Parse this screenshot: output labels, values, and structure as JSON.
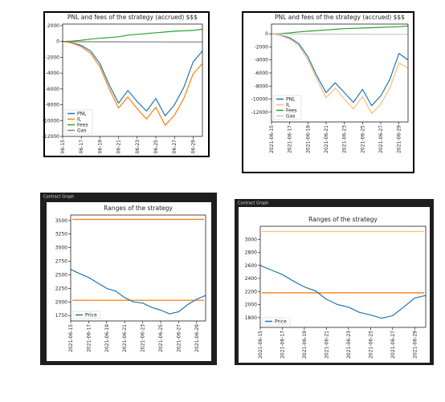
{
  "chart_data": [
    {
      "type": "line",
      "title": "PNL and fees of the strategy (accrued) $$$",
      "x": [
        "06-15",
        "06-16",
        "06-17",
        "06-18",
        "06-19",
        "06-20",
        "06-21",
        "06-22",
        "06-23",
        "06-24",
        "06-25",
        "06-26",
        "06-27",
        "06-28",
        "06-29",
        "06-30"
      ],
      "xticks": [
        "06-15",
        "06-17",
        "06-19",
        "06-21",
        "06-23",
        "06-25",
        "06-27",
        "06-29"
      ],
      "ylim": [
        -12000,
        2200
      ],
      "yticks": [
        2000,
        0,
        -2000,
        -4000,
        -6000,
        -8000,
        -10000,
        -12000
      ],
      "legend": "lower left",
      "series": [
        {
          "name": "PNL",
          "color": "#1f77b4",
          "values": [
            0,
            -150,
            -500,
            -1200,
            -2800,
            -5500,
            -7800,
            -6200,
            -7600,
            -8800,
            -7200,
            -9400,
            -8000,
            -5800,
            -2600,
            -1200
          ]
        },
        {
          "name": "IL",
          "color": "#ff7f0e",
          "values": [
            0,
            -200,
            -650,
            -1500,
            -3200,
            -6000,
            -8400,
            -7000,
            -8500,
            -9800,
            -8300,
            -10600,
            -9300,
            -7200,
            -4100,
            -2800
          ]
        },
        {
          "name": "Fees",
          "color": "#2ca02c",
          "values": [
            0,
            50,
            150,
            300,
            400,
            500,
            600,
            800,
            900,
            1000,
            1100,
            1200,
            1300,
            1350,
            1400,
            1550
          ]
        },
        {
          "name": "Gas",
          "color": "#7f7f7f",
          "values": [
            0,
            -20,
            -30,
            -30,
            -40,
            -40,
            -40,
            -50,
            -50,
            -50,
            -50,
            -60,
            -60,
            -60,
            -60,
            -60
          ]
        }
      ]
    },
    {
      "type": "line",
      "title": "PNL and fees of the strategy (accrued) $$$",
      "x": [
        "2021-06-15",
        "2021-06-16",
        "2021-06-17",
        "2021-06-18",
        "2021-06-19",
        "2021-06-20",
        "2021-06-21",
        "2021-06-22",
        "2021-06-23",
        "2021-06-24",
        "2021-06-25",
        "2021-06-26",
        "2021-06-27",
        "2021-06-28",
        "2021-06-29",
        "2021-06-30"
      ],
      "xticks": [
        "2021-06-15",
        "2021-06-17",
        "2021-06-19",
        "2021-06-21",
        "2021-06-23",
        "2021-06-25",
        "2021-06-27",
        "2021-06-29"
      ],
      "ylim": [
        -13500,
        1500
      ],
      "yticks": [
        0,
        -2000,
        -4000,
        -6000,
        -8000,
        -10000,
        -12000
      ],
      "legend": "lower left",
      "series": [
        {
          "name": "PNL",
          "color": "#1f77b4",
          "values": [
            0,
            -200,
            -600,
            -1500,
            -3500,
            -6500,
            -9000,
            -7500,
            -9000,
            -10500,
            -8500,
            -11000,
            -9500,
            -7000,
            -3000,
            -4000
          ]
        },
        {
          "name": "IL",
          "color": "#ffbb78",
          "values": [
            0,
            -250,
            -800,
            -1800,
            -4000,
            -7000,
            -9800,
            -8300,
            -10000,
            -11500,
            -9600,
            -12200,
            -10800,
            -8300,
            -4500,
            -5200
          ]
        },
        {
          "name": "Fees",
          "color": "#2ca02c",
          "values": [
            0,
            50,
            150,
            300,
            400,
            500,
            600,
            700,
            800,
            850,
            900,
            950,
            1000,
            1050,
            1100,
            1200
          ]
        },
        {
          "name": "Gas",
          "color": "#c7c7c7",
          "values": [
            0,
            -20,
            -30,
            -30,
            -40,
            -40,
            -40,
            -50,
            -50,
            -50,
            -50,
            -60,
            -60,
            -60,
            -60,
            -60
          ]
        }
      ]
    },
    {
      "type": "line",
      "window_title": "Contract Graph",
      "title": "Ranges of the strategy",
      "x": [
        "2021-06-15",
        "2021-06-16",
        "2021-06-17",
        "2021-06-18",
        "2021-06-19",
        "2021-06-20",
        "2021-06-21",
        "2021-06-22",
        "2021-06-23",
        "2021-06-24",
        "2021-06-25",
        "2021-06-26",
        "2021-06-27",
        "2021-06-28",
        "2021-06-29",
        "2021-06-30"
      ],
      "xticks": [
        "2021-06-15",
        "2021-06-17",
        "2021-06-19",
        "2021-06-21",
        "2021-06-23",
        "2021-06-25",
        "2021-06-27",
        "2021-06-29"
      ],
      "ylim": [
        1650,
        3600
      ],
      "yticks": [
        1750,
        2000,
        2250,
        2500,
        2750,
        3000,
        3250,
        3500
      ],
      "legend": "lower left",
      "hlines": [
        {
          "value": 3520,
          "color": "#ff7f0e"
        },
        {
          "value": 2030,
          "color": "#ff7f0e"
        }
      ],
      "series": [
        {
          "name": "Price",
          "color": "#1f77b4",
          "values": [
            2600,
            2520,
            2450,
            2350,
            2250,
            2200,
            2080,
            2000,
            1980,
            1900,
            1850,
            1780,
            1820,
            1950,
            2050,
            2120
          ]
        }
      ]
    },
    {
      "type": "line",
      "window_title": "Contract Graph",
      "title": "Ranges of the strategy",
      "x": [
        "2021-06-15",
        "2021-06-16",
        "2021-06-17",
        "2021-06-18",
        "2021-06-19",
        "2021-06-20",
        "2021-06-21",
        "2021-06-22",
        "2021-06-23",
        "2021-06-24",
        "2021-06-25",
        "2021-06-26",
        "2021-06-27",
        "2021-06-28",
        "2021-06-29",
        "2021-06-30"
      ],
      "xticks": [
        "2021-06-15",
        "2021-06-17",
        "2021-06-19",
        "2021-06-21",
        "2021-06-23",
        "2021-06-25",
        "2021-06-27",
        "2021-06-29"
      ],
      "ylim": [
        1650,
        3200
      ],
      "yticks": [
        1800,
        2000,
        2200,
        2400,
        2600,
        2800,
        3000
      ],
      "legend": "lower left",
      "hlines": [
        {
          "value": 3120,
          "color": "#ffbb78"
        },
        {
          "value": 2180,
          "color": "#ff7f0e"
        }
      ],
      "series": [
        {
          "name": "Price",
          "color": "#1f77b4",
          "values": [
            2600,
            2530,
            2460,
            2360,
            2270,
            2210,
            2080,
            2000,
            1960,
            1880,
            1840,
            1790,
            1830,
            1960,
            2100,
            2140
          ]
        }
      ]
    }
  ]
}
